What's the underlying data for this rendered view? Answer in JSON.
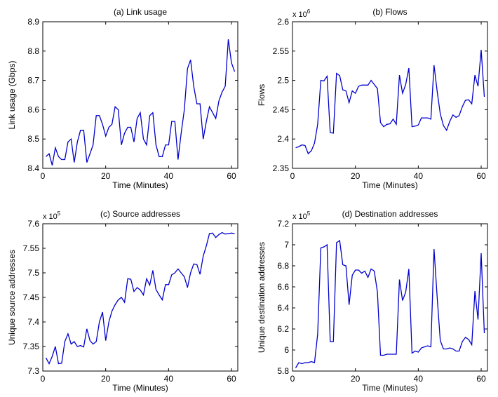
{
  "chart_data": [
    {
      "type": "line",
      "title": "(a) Link usage",
      "xlabel": "Time (Minutes)",
      "ylabel": "Link usage (Gbps)",
      "multiplier": "",
      "xlim": [
        0,
        62
      ],
      "ylim": [
        8.4,
        8.9
      ],
      "xticks": [
        0,
        20,
        40,
        60
      ],
      "xtick_labels": [
        "0",
        "20",
        "40",
        "60"
      ],
      "yticks": [
        8.4,
        8.5,
        8.6,
        8.7,
        8.8,
        8.9
      ],
      "ytick_labels": [
        "8.4",
        "8.5",
        "8.6",
        "8.7",
        "8.8",
        "8.9"
      ],
      "line_color": "#0000cc",
      "x": [
        1,
        2,
        3,
        4,
        5,
        6,
        7,
        8,
        9,
        10,
        11,
        12,
        13,
        14,
        15,
        16,
        17,
        18,
        19,
        20,
        21,
        22,
        23,
        24,
        25,
        26,
        27,
        28,
        29,
        30,
        31,
        32,
        33,
        34,
        35,
        36,
        37,
        38,
        39,
        40,
        41,
        42,
        43,
        44,
        45,
        46,
        47,
        48,
        49,
        50,
        51,
        52,
        53,
        54,
        55,
        56,
        57,
        58,
        59,
        60,
        61
      ],
      "y": [
        8.44,
        8.45,
        8.41,
        8.47,
        8.44,
        8.43,
        8.43,
        8.49,
        8.5,
        8.42,
        8.49,
        8.53,
        8.53,
        8.42,
        8.45,
        8.48,
        8.58,
        8.58,
        8.55,
        8.51,
        8.54,
        8.55,
        8.61,
        8.6,
        8.48,
        8.52,
        8.54,
        8.54,
        8.49,
        8.57,
        8.59,
        8.5,
        8.48,
        8.58,
        8.59,
        8.48,
        8.44,
        8.44,
        8.48,
        8.48,
        8.56,
        8.56,
        8.43,
        8.52,
        8.6,
        8.74,
        8.77,
        8.68,
        8.62,
        8.62,
        8.5,
        8.56,
        8.61,
        8.59,
        8.57,
        8.63,
        8.66,
        8.68,
        8.84,
        8.76,
        8.73
      ]
    },
    {
      "type": "line",
      "title": "(b) Flows",
      "xlabel": "Time (Minutes)",
      "ylabel": "Flows",
      "multiplier": "x 10",
      "multiplier_exp": "6",
      "xlim": [
        0,
        62
      ],
      "ylim": [
        2.35,
        2.6
      ],
      "xticks": [
        0,
        20,
        40,
        60
      ],
      "xtick_labels": [
        "0",
        "20",
        "40",
        "60"
      ],
      "yticks": [
        2.35,
        2.4,
        2.45,
        2.5,
        2.55,
        2.6
      ],
      "ytick_labels": [
        "2.35",
        "2.4",
        "2.45",
        "2.5",
        "2.55",
        "2.6"
      ],
      "line_color": "#0000cc",
      "x": [
        1,
        2,
        3,
        4,
        5,
        6,
        7,
        8,
        9,
        10,
        11,
        12,
        13,
        14,
        15,
        16,
        17,
        18,
        19,
        20,
        21,
        22,
        23,
        24,
        25,
        26,
        27,
        28,
        29,
        30,
        31,
        32,
        33,
        34,
        35,
        36,
        37,
        38,
        39,
        40,
        41,
        42,
        43,
        44,
        45,
        46,
        47,
        48,
        49,
        50,
        51,
        52,
        53,
        54,
        55,
        56,
        57,
        58,
        59,
        60,
        61
      ],
      "y": [
        2.385,
        2.387,
        2.39,
        2.389,
        2.375,
        2.38,
        2.393,
        2.425,
        2.5,
        2.499,
        2.507,
        2.411,
        2.41,
        2.512,
        2.508,
        2.484,
        2.482,
        2.462,
        2.482,
        2.478,
        2.49,
        2.492,
        2.492,
        2.492,
        2.5,
        2.493,
        2.486,
        2.428,
        2.421,
        2.425,
        2.426,
        2.434,
        2.425,
        2.509,
        2.478,
        2.493,
        2.521,
        2.421,
        2.422,
        2.424,
        2.436,
        2.436,
        2.436,
        2.434,
        2.526,
        2.481,
        2.443,
        2.423,
        2.415,
        2.43,
        2.441,
        2.437,
        2.44,
        2.455,
        2.466,
        2.467,
        2.46,
        2.509,
        2.49,
        2.552,
        2.472
      ]
    },
    {
      "type": "line",
      "title": "(c) Source addresses",
      "xlabel": "Time (Minutes)",
      "ylabel": "Unique source addresses",
      "multiplier": "x 10",
      "multiplier_exp": "5",
      "xlim": [
        0,
        62
      ],
      "ylim": [
        7.3,
        7.6
      ],
      "xticks": [
        0,
        20,
        40,
        60
      ],
      "xtick_labels": [
        "0",
        "20",
        "40",
        "60"
      ],
      "yticks": [
        7.3,
        7.35,
        7.4,
        7.45,
        7.5,
        7.55,
        7.6
      ],
      "ytick_labels": [
        "7.3",
        "7.35",
        "7.4",
        "7.45",
        "7.5",
        "7.55",
        "7.6"
      ],
      "line_color": "#0000cc",
      "x": [
        1,
        2,
        3,
        4,
        5,
        6,
        7,
        8,
        9,
        10,
        11,
        12,
        13,
        14,
        15,
        16,
        17,
        18,
        19,
        20,
        21,
        22,
        23,
        24,
        25,
        26,
        27,
        28,
        29,
        30,
        31,
        32,
        33,
        34,
        35,
        36,
        37,
        38,
        39,
        40,
        41,
        42,
        43,
        44,
        45,
        46,
        47,
        48,
        49,
        50,
        51,
        52,
        53,
        54,
        55,
        56,
        57,
        58,
        59,
        60,
        61
      ],
      "y": [
        7.327,
        7.315,
        7.33,
        7.35,
        7.315,
        7.316,
        7.36,
        7.376,
        7.355,
        7.36,
        7.35,
        7.352,
        7.349,
        7.386,
        7.362,
        7.355,
        7.36,
        7.4,
        7.42,
        7.362,
        7.4,
        7.422,
        7.435,
        7.445,
        7.45,
        7.44,
        7.488,
        7.487,
        7.462,
        7.47,
        7.465,
        7.455,
        7.488,
        7.475,
        7.505,
        7.466,
        7.455,
        7.445,
        7.476,
        7.476,
        7.496,
        7.5,
        7.508,
        7.5,
        7.492,
        7.47,
        7.5,
        7.518,
        7.517,
        7.497,
        7.534,
        7.555,
        7.58,
        7.581,
        7.572,
        7.578,
        7.582,
        7.579,
        7.58,
        7.581,
        7.58
      ]
    },
    {
      "type": "line",
      "title": "(d) Destination addresses",
      "xlabel": "Time (Minutes)",
      "ylabel": "Unique destination addresses",
      "multiplier": "x 10",
      "multiplier_exp": "5",
      "xlim": [
        0,
        62
      ],
      "ylim": [
        5.8,
        7.2
      ],
      "xticks": [
        0,
        20,
        40,
        60
      ],
      "xtick_labels": [
        "0",
        "20",
        "40",
        "60"
      ],
      "yticks": [
        5.8,
        6,
        6.2,
        6.4,
        6.6,
        6.8,
        7,
        7.2
      ],
      "ytick_labels": [
        "5.8",
        "6",
        "6.2",
        "6.4",
        "6.6",
        "6.8",
        "7",
        "7.2"
      ],
      "line_color": "#0000cc",
      "x": [
        1,
        2,
        3,
        4,
        5,
        6,
        7,
        8,
        9,
        10,
        11,
        12,
        13,
        14,
        15,
        16,
        17,
        18,
        19,
        20,
        21,
        22,
        23,
        24,
        25,
        26,
        27,
        28,
        29,
        30,
        31,
        32,
        33,
        34,
        35,
        36,
        37,
        38,
        39,
        40,
        41,
        42,
        43,
        44,
        45,
        46,
        47,
        48,
        49,
        50,
        51,
        52,
        53,
        54,
        55,
        56,
        57,
        58,
        59,
        60,
        61
      ],
      "y": [
        5.83,
        5.88,
        5.87,
        5.88,
        5.88,
        5.89,
        5.88,
        6.15,
        6.97,
        6.98,
        7.0,
        6.08,
        6.08,
        7.02,
        7.04,
        6.81,
        6.8,
        6.43,
        6.71,
        6.76,
        6.76,
        6.73,
        6.75,
        6.69,
        6.77,
        6.75,
        6.55,
        5.95,
        5.95,
        5.96,
        5.96,
        5.96,
        5.96,
        6.67,
        6.47,
        6.55,
        6.77,
        5.97,
        5.99,
        5.98,
        6.02,
        6.03,
        6.04,
        6.03,
        6.96,
        6.5,
        6.09,
        6.01,
        6.01,
        6.02,
        6.01,
        5.99,
        5.99,
        6.08,
        6.12,
        6.1,
        6.05,
        6.56,
        6.29,
        6.92,
        6.16
      ]
    }
  ]
}
